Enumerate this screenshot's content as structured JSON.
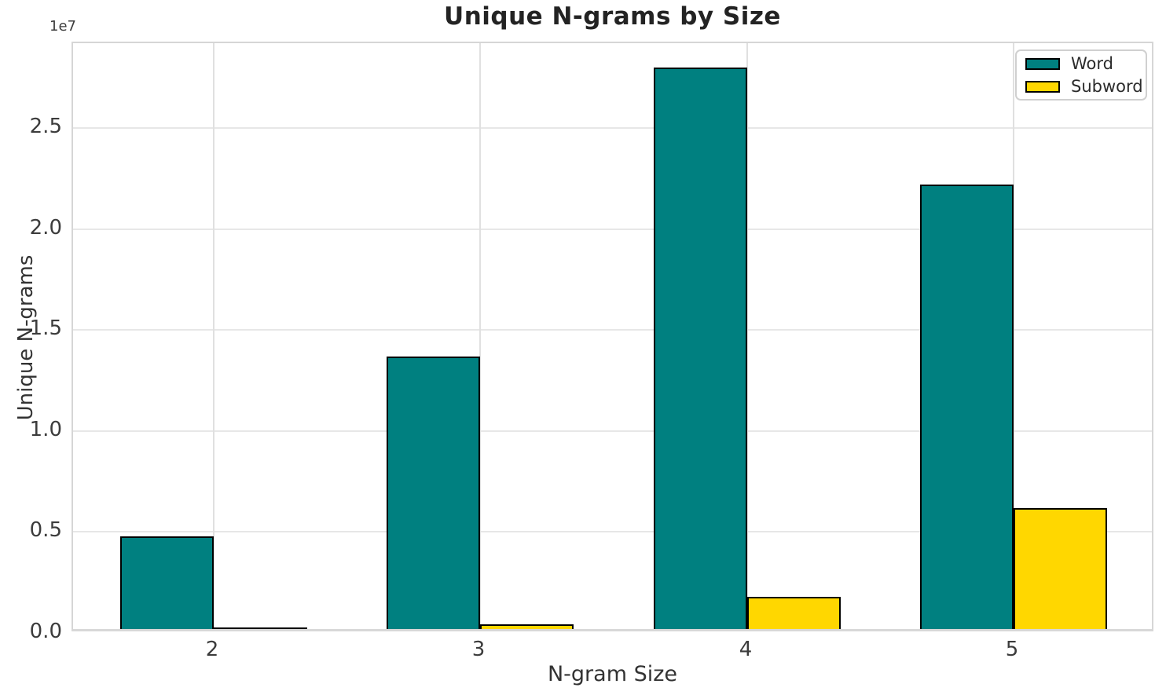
{
  "title": "Unique N-grams by Size",
  "chart_data": {
    "type": "bar",
    "title": "Unique N-grams by Size",
    "xlabel": "N-gram Size",
    "ylabel": "Unique N-grams",
    "y_offset_text": "1e7",
    "categories": [
      "2",
      "3",
      "4",
      "5"
    ],
    "series": [
      {
        "name": "Word",
        "color": "#008080",
        "values": [
          4600000,
          13500000,
          27800000,
          22000000
        ]
      },
      {
        "name": "Subword",
        "color": "#FFD700",
        "values": [
          50000,
          250000,
          1600000,
          6000000
        ]
      }
    ],
    "ylim": [
      0,
      29200000
    ],
    "yticks": [
      0,
      5000000,
      10000000,
      15000000,
      20000000,
      25000000
    ],
    "ytick_labels": [
      "0.0",
      "0.5",
      "1.0",
      "1.5",
      "2.0",
      "2.5"
    ],
    "bar_edge_color": "#000000",
    "grid": true,
    "legend_position": "upper right",
    "legend_labels": [
      "Word",
      "Subword"
    ]
  }
}
